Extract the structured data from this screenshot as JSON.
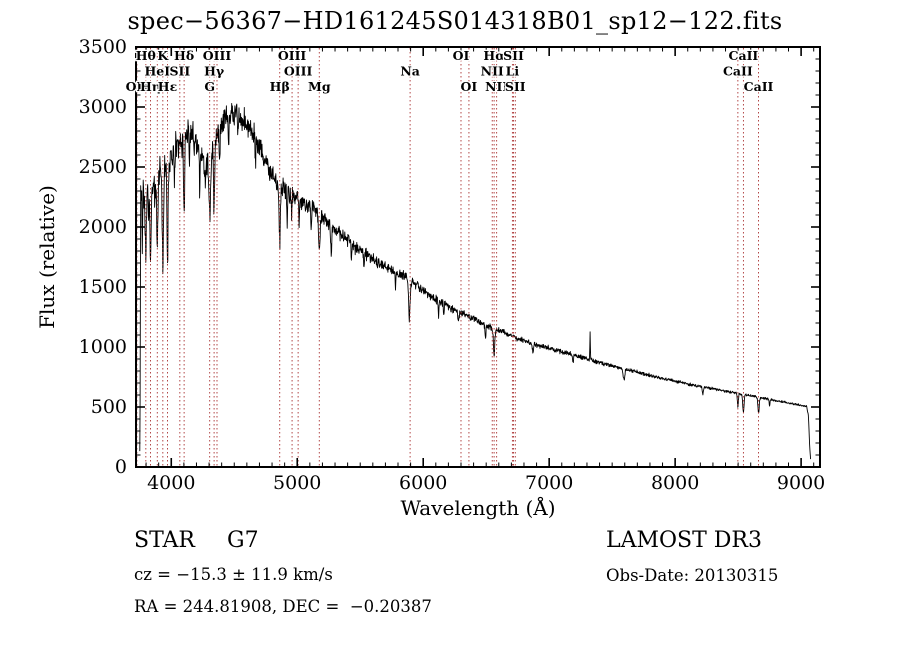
{
  "title": "spec−56367−HD161245S014318B01_sp12−122.fits",
  "colors": {
    "background": "#ffffff",
    "spectrum": "#000000",
    "line_marker": "#aa3333",
    "axis": "#000000"
  },
  "annotations": {
    "object_type": "STAR",
    "subclass": "G7",
    "survey": "LAMOST DR3",
    "cz": "cz = −15.3 ± 11.9 km/s",
    "obs_date": "Obs-Date: 20130315",
    "ra_dec": "RA = 244.81908, DEC =  −0.20387"
  },
  "chart_data": {
    "type": "line",
    "title": "spec−56367−HD161245S014318B01_sp12−122.fits",
    "xlabel": "Wavelength (Å)",
    "ylabel": "Flux (relative)",
    "xlim": [
      3720,
      9150
    ],
    "ylim": [
      0,
      3500
    ],
    "xticks": [
      4000,
      5000,
      6000,
      7000,
      8000,
      9000
    ],
    "yticks": [
      0,
      500,
      1000,
      1500,
      2000,
      2500,
      3000,
      3500
    ],
    "x_minor_step": 100,
    "y_minor_step": 100,
    "grid": false,
    "spectral_lines": [
      {
        "label": "OII",
        "wavelength": 3727,
        "row": 2
      },
      {
        "label": "Hθ",
        "wavelength": 3798,
        "row": 0
      },
      {
        "label": "Hη",
        "wavelength": 3835,
        "row": 2
      },
      {
        "label": "HeI",
        "wavelength": 3889,
        "row": 1
      },
      {
        "label": "K",
        "wavelength": 3933,
        "row": 0
      },
      {
        "label": "Hε",
        "wavelength": 3970,
        "row": 2
      },
      {
        "label": "SII",
        "wavelength": 4068,
        "row": 1
      },
      {
        "label": "Hδ",
        "wavelength": 4102,
        "row": 0
      },
      {
        "label": "G",
        "wavelength": 4305,
        "row": 2
      },
      {
        "label": "Hγ",
        "wavelength": 4340,
        "row": 1
      },
      {
        "label": "OIII",
        "wavelength": 4363,
        "row": 0
      },
      {
        "label": "Hβ",
        "wavelength": 4861,
        "row": 2
      },
      {
        "label": "OIII",
        "wavelength": 4959,
        "row": 0
      },
      {
        "label": "OIII",
        "wavelength": 5007,
        "row": 1
      },
      {
        "label": "Mg",
        "wavelength": 5175,
        "row": 2
      },
      {
        "label": "Na",
        "wavelength": 5896,
        "row": 1
      },
      {
        "label": "OI",
        "wavelength": 6300,
        "row": 0
      },
      {
        "label": "OI",
        "wavelength": 6363,
        "row": 2
      },
      {
        "label": "NII",
        "wavelength": 6548,
        "row": 1
      },
      {
        "label": "Hα",
        "wavelength": 6563,
        "row": 0
      },
      {
        "label": "NII",
        "wavelength": 6583,
        "row": 2
      },
      {
        "label": "Li",
        "wavelength": 6708,
        "row": 1
      },
      {
        "label": "SII",
        "wavelength": 6717,
        "row": 0
      },
      {
        "label": "SII",
        "wavelength": 6731,
        "row": 2
      },
      {
        "label": "CaII",
        "wavelength": 8498,
        "row": 1
      },
      {
        "label": "CaII",
        "wavelength": 8542,
        "row": 0
      },
      {
        "label": "CaII",
        "wavelength": 8662,
        "row": 2
      }
    ],
    "continuum": [
      [
        3750,
        20
      ],
      [
        3753,
        700
      ],
      [
        3757,
        2250
      ],
      [
        3765,
        2380
      ],
      [
        3780,
        2280
      ],
      [
        3800,
        2250
      ],
      [
        3820,
        2330
      ],
      [
        3845,
        2250
      ],
      [
        3870,
        2300
      ],
      [
        3895,
        2400
      ],
      [
        3915,
        2480
      ],
      [
        3935,
        2470
      ],
      [
        3955,
        2500
      ],
      [
        3975,
        2530
      ],
      [
        4000,
        2600
      ],
      [
        4030,
        2660
      ],
      [
        4060,
        2700
      ],
      [
        4090,
        2740
      ],
      [
        4120,
        2780
      ],
      [
        4150,
        2800
      ],
      [
        4180,
        2720
      ],
      [
        4210,
        2650
      ],
      [
        4240,
        2590
      ],
      [
        4270,
        2540
      ],
      [
        4300,
        2560
      ],
      [
        4330,
        2680
      ],
      [
        4360,
        2790
      ],
      [
        4390,
        2860
      ],
      [
        4420,
        2890
      ],
      [
        4450,
        2920
      ],
      [
        4490,
        2950
      ],
      [
        4530,
        2930
      ],
      [
        4570,
        2900
      ],
      [
        4610,
        2850
      ],
      [
        4650,
        2790
      ],
      [
        4690,
        2700
      ],
      [
        4730,
        2600
      ],
      [
        4770,
        2500
      ],
      [
        4810,
        2420
      ],
      [
        4850,
        2370
      ],
      [
        4890,
        2320
      ],
      [
        4930,
        2290
      ],
      [
        4970,
        2270
      ],
      [
        5010,
        2250
      ],
      [
        5060,
        2200
      ],
      [
        5110,
        2160
      ],
      [
        5160,
        2120
      ],
      [
        5210,
        2070
      ],
      [
        5260,
        2020
      ],
      [
        5310,
        1970
      ],
      [
        5360,
        1920
      ],
      [
        5410,
        1870
      ],
      [
        5460,
        1830
      ],
      [
        5510,
        1800
      ],
      [
        5560,
        1760
      ],
      [
        5610,
        1720
      ],
      [
        5660,
        1690
      ],
      [
        5710,
        1660
      ],
      [
        5760,
        1630
      ],
      [
        5810,
        1610
      ],
      [
        5860,
        1590
      ],
      [
        5910,
        1550
      ],
      [
        5960,
        1510
      ],
      [
        6010,
        1460
      ],
      [
        6060,
        1420
      ],
      [
        6110,
        1390
      ],
      [
        6160,
        1360
      ],
      [
        6210,
        1330
      ],
      [
        6260,
        1300
      ],
      [
        6310,
        1280
      ],
      [
        6360,
        1255
      ],
      [
        6410,
        1230
      ],
      [
        6460,
        1200
      ],
      [
        6510,
        1170
      ],
      [
        6560,
        1150
      ],
      [
        6610,
        1130
      ],
      [
        6660,
        1110
      ],
      [
        6710,
        1090
      ],
      [
        6760,
        1070
      ],
      [
        6810,
        1050
      ],
      [
        6860,
        1030
      ],
      [
        6910,
        1015
      ],
      [
        6960,
        1000
      ],
      [
        7010,
        988
      ],
      [
        7110,
        958
      ],
      [
        7210,
        928
      ],
      [
        7310,
        898
      ],
      [
        7410,
        868
      ],
      [
        7510,
        840
      ],
      [
        7610,
        815
      ],
      [
        7710,
        788
      ],
      [
        7810,
        762
      ],
      [
        7910,
        736
      ],
      [
        8010,
        712
      ],
      [
        8110,
        690
      ],
      [
        8210,
        670
      ],
      [
        8310,
        650
      ],
      [
        8410,
        630
      ],
      [
        8510,
        610
      ],
      [
        8610,
        592
      ],
      [
        8710,
        572
      ],
      [
        8810,
        552
      ],
      [
        8910,
        532
      ],
      [
        9010,
        512
      ],
      [
        9045,
        502
      ],
      [
        9058,
        430
      ],
      [
        9068,
        180
      ],
      [
        9076,
        50
      ]
    ],
    "absorption_lines": [
      [
        3770,
        3.5,
        480
      ],
      [
        3798,
        4,
        580
      ],
      [
        3820,
        3,
        300
      ],
      [
        3835,
        4,
        620
      ],
      [
        3889,
        4,
        580
      ],
      [
        3933,
        5,
        820
      ],
      [
        3970,
        5,
        760
      ],
      [
        4026,
        3,
        300
      ],
      [
        4102,
        5,
        640
      ],
      [
        4144,
        3,
        220
      ],
      [
        4226,
        3,
        330
      ],
      [
        4271,
        3,
        260
      ],
      [
        4305,
        7,
        480
      ],
      [
        4340,
        5,
        560
      ],
      [
        4383,
        3.5,
        330
      ],
      [
        4455,
        3,
        220
      ],
      [
        4531,
        3,
        200
      ],
      [
        4668,
        3,
        210
      ],
      [
        4861,
        5,
        470
      ],
      [
        4920,
        3.5,
        250
      ],
      [
        4957,
        3,
        180
      ],
      [
        5015,
        3,
        200
      ],
      [
        5110,
        3,
        180
      ],
      [
        5175,
        6,
        310
      ],
      [
        5270,
        4,
        260
      ],
      [
        5430,
        3,
        160
      ],
      [
        5530,
        3,
        150
      ],
      [
        5780,
        3,
        120
      ],
      [
        5890,
        6,
        320
      ],
      [
        6122,
        3,
        120
      ],
      [
        6163,
        3,
        100
      ],
      [
        6280,
        4,
        90
      ],
      [
        6495,
        3,
        110
      ],
      [
        6563,
        5,
        230
      ],
      [
        6870,
        5,
        70
      ],
      [
        7190,
        4,
        70
      ],
      [
        7594,
        6,
        95
      ],
      [
        8220,
        4,
        60
      ],
      [
        8498,
        4,
        115
      ],
      [
        8542,
        5,
        150
      ],
      [
        8662,
        5,
        140
      ],
      [
        8750,
        3,
        60
      ]
    ],
    "emission_spikes": [
      [
        7325,
        2,
        230
      ]
    ],
    "noise_profile": [
      [
        3755,
        175
      ],
      [
        3900,
        165
      ],
      [
        4100,
        160
      ],
      [
        4300,
        150
      ],
      [
        4500,
        130
      ],
      [
        4700,
        115
      ],
      [
        4900,
        100
      ],
      [
        5100,
        85
      ],
      [
        5300,
        75
      ],
      [
        5500,
        62
      ],
      [
        5700,
        55
      ],
      [
        5900,
        50
      ],
      [
        6100,
        44
      ],
      [
        6300,
        38
      ],
      [
        6500,
        33
      ],
      [
        6700,
        29
      ],
      [
        7000,
        25
      ],
      [
        7300,
        22
      ],
      [
        7600,
        19
      ],
      [
        8000,
        16
      ],
      [
        8400,
        14
      ],
      [
        8800,
        12
      ],
      [
        9076,
        10
      ]
    ],
    "sample_step": 2.5,
    "noise_seed": 20130315
  }
}
